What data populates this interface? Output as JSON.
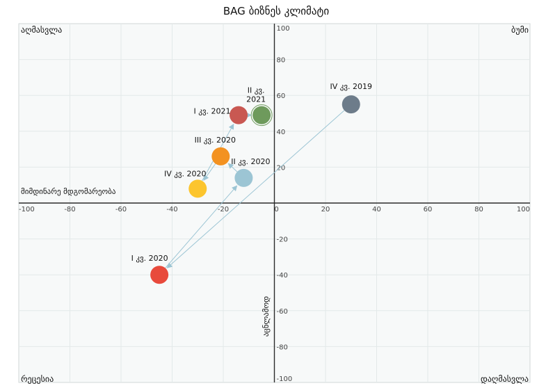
{
  "chart_data": {
    "type": "scatter",
    "title": "BAG ბიზნეს კლიმატი",
    "xlabel": "მიმდინარე მდგომარეობა",
    "ylabel": "აცნლამოდ",
    "xlim": [
      -100,
      100
    ],
    "ylim": [
      -100,
      100
    ],
    "x_ticks": [
      "-100",
      "-80",
      "-60",
      "-40",
      "-20",
      "0",
      "20",
      "40",
      "60",
      "80",
      "100"
    ],
    "y_ticks": [
      "100",
      "80",
      "60",
      "40",
      "20",
      "-20",
      "-40",
      "-60",
      "-80",
      "-100"
    ],
    "quadrants": {
      "top_left": "აღმასვლა",
      "top_right": "ბუმი",
      "bottom_left": "რეცესია",
      "bottom_right": "დაღმასვლა"
    },
    "grid": true,
    "points": [
      {
        "label": "IV კვ. 2019",
        "x": 30,
        "y": 55,
        "color": "#6d7c8a"
      },
      {
        "label": "I კვ. 2020",
        "x": -45,
        "y": -40,
        "color": "#e84a3c"
      },
      {
        "label": "II კვ. 2020",
        "x": -12,
        "y": 14,
        "color": "#9cc5d4"
      },
      {
        "label": "III კვ. 2020",
        "x": -21,
        "y": 26,
        "color": "#f39221"
      },
      {
        "label": "IV კვ. 2020",
        "x": -30,
        "y": 8,
        "color": "#fcc52e"
      },
      {
        "label": "I კვ. 2021",
        "x": -14,
        "y": 49,
        "color": "#c95852"
      },
      {
        "label": "II კვ. 2021",
        "x": -5,
        "y": 49,
        "color": "#6e9a5c"
      }
    ]
  }
}
